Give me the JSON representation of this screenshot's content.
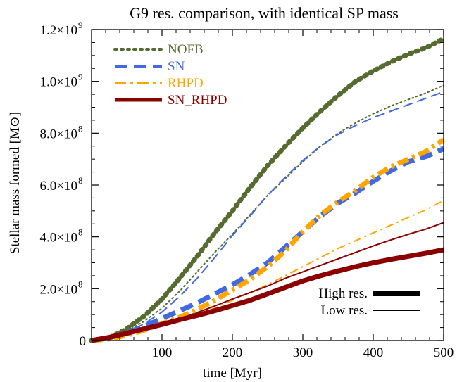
{
  "chart_data": {
    "type": "line",
    "title": "G9 res. comparison, with identical SP mass",
    "xlabel": "time [Myr]",
    "ylabel": "Stellar mass formed [M⊙]",
    "xlim": [
      0,
      500
    ],
    "ylim": [
      0,
      1200000000
    ],
    "x_ticks": [
      100,
      200,
      300,
      400,
      500
    ],
    "x_tick_labels": [
      "100",
      "200",
      "300",
      "400",
      "500"
    ],
    "y_ticks": [
      0,
      200000000,
      400000000,
      600000000,
      800000000,
      1000000000,
      1200000000
    ],
    "y_tick_labels": [
      {
        "mant": "0",
        "exp": ""
      },
      {
        "mant": "2.0×10",
        "exp": "8"
      },
      {
        "mant": "4.0×10",
        "exp": "8"
      },
      {
        "mant": "6.0×10",
        "exp": "8"
      },
      {
        "mant": "8.0×10",
        "exp": "8"
      },
      {
        "mant": "1.0×10",
        "exp": "9"
      },
      {
        "mant": "1.2×10",
        "exp": "9"
      }
    ],
    "legend_position": "top-left",
    "grid": false,
    "series": [
      {
        "name": "NOFB",
        "color": "#556b2f",
        "style": "dotted",
        "resolution": "high",
        "points": [
          [
            0,
            0
          ],
          [
            25,
            10000000
          ],
          [
            50,
            45000000
          ],
          [
            75,
            95000000
          ],
          [
            100,
            160000000
          ],
          [
            125,
            240000000
          ],
          [
            150,
            325000000
          ],
          [
            175,
            415000000
          ],
          [
            200,
            500000000
          ],
          [
            225,
            590000000
          ],
          [
            250,
            675000000
          ],
          [
            275,
            750000000
          ],
          [
            300,
            820000000
          ],
          [
            325,
            885000000
          ],
          [
            350,
            945000000
          ],
          [
            375,
            1000000000
          ],
          [
            400,
            1040000000
          ],
          [
            425,
            1075000000
          ],
          [
            450,
            1105000000
          ],
          [
            475,
            1130000000
          ],
          [
            500,
            1165000000
          ]
        ]
      },
      {
        "name": "NOFB",
        "color": "#556b2f",
        "style": "dotted",
        "resolution": "low",
        "points": [
          [
            0,
            0
          ],
          [
            25,
            8000000
          ],
          [
            50,
            35000000
          ],
          [
            75,
            75000000
          ],
          [
            100,
            125000000
          ],
          [
            125,
            190000000
          ],
          [
            150,
            265000000
          ],
          [
            175,
            340000000
          ],
          [
            200,
            410000000
          ],
          [
            225,
            485000000
          ],
          [
            250,
            560000000
          ],
          [
            275,
            625000000
          ],
          [
            300,
            690000000
          ],
          [
            325,
            750000000
          ],
          [
            350,
            800000000
          ],
          [
            375,
            840000000
          ],
          [
            400,
            875000000
          ],
          [
            425,
            905000000
          ],
          [
            450,
            930000000
          ],
          [
            475,
            955000000
          ],
          [
            500,
            985000000
          ]
        ]
      },
      {
        "name": "SN",
        "color": "#4169e1",
        "style": "dashed",
        "resolution": "high",
        "points": [
          [
            0,
            0
          ],
          [
            25,
            10000000
          ],
          [
            50,
            30000000
          ],
          [
            75,
            55000000
          ],
          [
            100,
            85000000
          ],
          [
            125,
            115000000
          ],
          [
            150,
            145000000
          ],
          [
            175,
            180000000
          ],
          [
            200,
            215000000
          ],
          [
            225,
            255000000
          ],
          [
            250,
            300000000
          ],
          [
            275,
            360000000
          ],
          [
            300,
            420000000
          ],
          [
            325,
            480000000
          ],
          [
            350,
            530000000
          ],
          [
            375,
            570000000
          ],
          [
            400,
            615000000
          ],
          [
            425,
            655000000
          ],
          [
            450,
            690000000
          ],
          [
            475,
            710000000
          ],
          [
            500,
            740000000
          ]
        ]
      },
      {
        "name": "SN",
        "color": "#4169e1",
        "style": "dashed",
        "resolution": "low",
        "points": [
          [
            0,
            0
          ],
          [
            25,
            8000000
          ],
          [
            50,
            30000000
          ],
          [
            75,
            65000000
          ],
          [
            100,
            110000000
          ],
          [
            125,
            170000000
          ],
          [
            150,
            240000000
          ],
          [
            175,
            320000000
          ],
          [
            200,
            405000000
          ],
          [
            225,
            480000000
          ],
          [
            250,
            560000000
          ],
          [
            275,
            630000000
          ],
          [
            300,
            695000000
          ],
          [
            325,
            750000000
          ],
          [
            350,
            795000000
          ],
          [
            375,
            830000000
          ],
          [
            400,
            860000000
          ],
          [
            425,
            885000000
          ],
          [
            450,
            910000000
          ],
          [
            475,
            935000000
          ],
          [
            500,
            960000000
          ]
        ]
      },
      {
        "name": "RHPD",
        "color": "#ffa500",
        "style": "dashdot",
        "resolution": "high",
        "points": [
          [
            0,
            0
          ],
          [
            25,
            6000000
          ],
          [
            50,
            20000000
          ],
          [
            75,
            40000000
          ],
          [
            100,
            65000000
          ],
          [
            125,
            90000000
          ],
          [
            150,
            120000000
          ],
          [
            175,
            155000000
          ],
          [
            200,
            195000000
          ],
          [
            225,
            235000000
          ],
          [
            250,
            285000000
          ],
          [
            275,
            345000000
          ],
          [
            300,
            420000000
          ],
          [
            325,
            485000000
          ],
          [
            350,
            535000000
          ],
          [
            375,
            580000000
          ],
          [
            400,
            630000000
          ],
          [
            425,
            670000000
          ],
          [
            450,
            700000000
          ],
          [
            475,
            730000000
          ],
          [
            500,
            775000000
          ]
        ]
      },
      {
        "name": "RHPD",
        "color": "#ffa500",
        "style": "dashdot",
        "resolution": "low",
        "points": [
          [
            0,
            0
          ],
          [
            25,
            6000000
          ],
          [
            50,
            20000000
          ],
          [
            75,
            40000000
          ],
          [
            100,
            60000000
          ],
          [
            125,
            80000000
          ],
          [
            150,
            100000000
          ],
          [
            175,
            125000000
          ],
          [
            200,
            155000000
          ],
          [
            225,
            185000000
          ],
          [
            250,
            215000000
          ],
          [
            275,
            250000000
          ],
          [
            300,
            285000000
          ],
          [
            325,
            320000000
          ],
          [
            350,
            355000000
          ],
          [
            375,
            385000000
          ],
          [
            400,
            415000000
          ],
          [
            425,
            445000000
          ],
          [
            450,
            475000000
          ],
          [
            475,
            505000000
          ],
          [
            500,
            540000000
          ]
        ]
      },
      {
        "name": "SN_RHPD",
        "color": "#8b0000",
        "style": "solid",
        "resolution": "high",
        "points": [
          [
            0,
            0
          ],
          [
            25,
            12000000
          ],
          [
            50,
            28000000
          ],
          [
            75,
            45000000
          ],
          [
            100,
            62000000
          ],
          [
            125,
            80000000
          ],
          [
            150,
            97000000
          ],
          [
            175,
            115000000
          ],
          [
            200,
            135000000
          ],
          [
            225,
            155000000
          ],
          [
            250,
            180000000
          ],
          [
            275,
            205000000
          ],
          [
            300,
            230000000
          ],
          [
            325,
            250000000
          ],
          [
            350,
            268000000
          ],
          [
            375,
            285000000
          ],
          [
            400,
            300000000
          ],
          [
            425,
            313000000
          ],
          [
            450,
            325000000
          ],
          [
            475,
            337000000
          ],
          [
            500,
            350000000
          ]
        ]
      },
      {
        "name": "SN_RHPD",
        "color": "#8b0000",
        "style": "solid",
        "resolution": "low",
        "points": [
          [
            0,
            0
          ],
          [
            25,
            12000000
          ],
          [
            50,
            28000000
          ],
          [
            75,
            45000000
          ],
          [
            100,
            65000000
          ],
          [
            125,
            85000000
          ],
          [
            150,
            108000000
          ],
          [
            175,
            133000000
          ],
          [
            200,
            160000000
          ],
          [
            225,
            185000000
          ],
          [
            250,
            210000000
          ],
          [
            275,
            240000000
          ],
          [
            300,
            265000000
          ],
          [
            325,
            290000000
          ],
          [
            350,
            315000000
          ],
          [
            375,
            340000000
          ],
          [
            400,
            365000000
          ],
          [
            425,
            388000000
          ],
          [
            450,
            410000000
          ],
          [
            475,
            430000000
          ],
          [
            500,
            455000000
          ]
        ]
      }
    ],
    "res_legend": [
      {
        "label": "High res.",
        "resolution": "high"
      },
      {
        "label": "Low res.",
        "resolution": "low"
      }
    ]
  }
}
